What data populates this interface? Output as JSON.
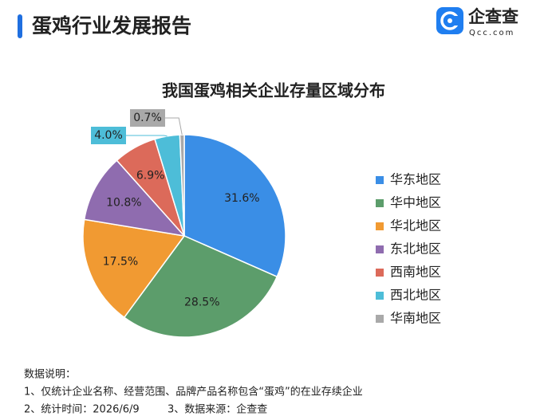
{
  "header": {
    "title": "蛋鸡行业发展报告"
  },
  "logo": {
    "name": "企查查",
    "domain": "Qcc.com"
  },
  "chart_data": {
    "type": "pie",
    "title": "我国蛋鸡相关企业存量区域分布",
    "categories": [
      "华东地区",
      "华中地区",
      "华北地区",
      "东北地区",
      "西南地区",
      "西北地区",
      "华南地区"
    ],
    "values": [
      31.6,
      28.5,
      17.5,
      10.8,
      6.9,
      4.0,
      0.7
    ],
    "value_labels": [
      "31.6%",
      "28.5%",
      "17.5%",
      "10.8%",
      "6.9%",
      "4.0%",
      "0.7%"
    ],
    "colors": [
      "#3a8ee6",
      "#5c9d6b",
      "#f19a32",
      "#8f6caf",
      "#dc6a5a",
      "#4dbdd8",
      "#a9a9a9"
    ],
    "legend": "right"
  },
  "notes": {
    "heading": "数据说明：",
    "line1": "1、仅统计企业名称、经营范围、品牌产品名称包含“蛋鸡”的在业存续企业",
    "line2a": "2、统计时间：2026/6/9",
    "line2b": "3、数据来源：企查查"
  }
}
